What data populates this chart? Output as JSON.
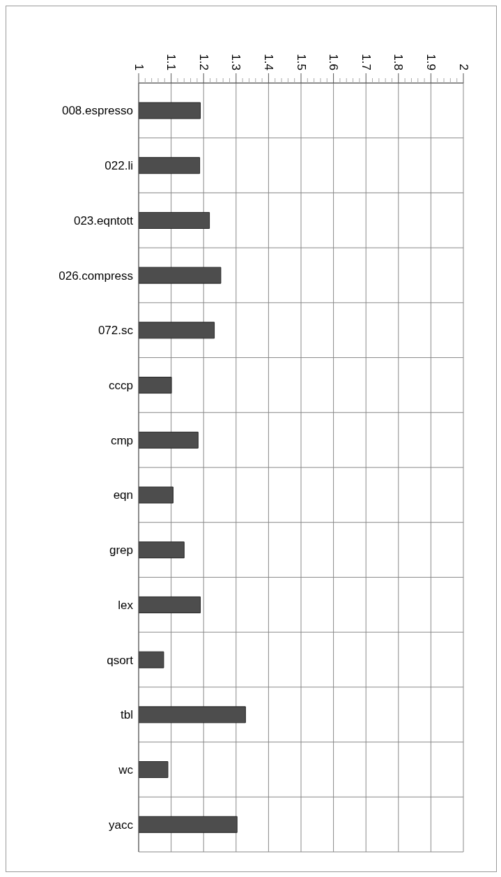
{
  "chart_data": {
    "type": "bar",
    "orientation": "horizontal",
    "categories": [
      "008.espresso",
      "022.li",
      "023.eqntott",
      "026.compress",
      "072.sc",
      "cccp",
      "cmp",
      "eqn",
      "grep",
      "lex",
      "qsort",
      "tbl",
      "wc",
      "yacc"
    ],
    "values": [
      1.19,
      1.188,
      1.218,
      1.253,
      1.233,
      1.101,
      1.183,
      1.106,
      1.14,
      1.19,
      1.077,
      1.329,
      1.09,
      1.303
    ],
    "color": "#4d4d4d",
    "xlim": [
      1,
      2
    ],
    "xticks": [
      1,
      {
        "value": 1.02,
        "label": null
      },
      {
        "value": 1.04,
        "label": null
      },
      {
        "value": 1.06,
        "label": null
      },
      {
        "value": 1.08,
        "label": null
      },
      1.1,
      {
        "value": 1.12,
        "label": null
      },
      {
        "value": 1.14,
        "label": null
      },
      {
        "value": 1.16,
        "label": null
      },
      {
        "value": 1.18,
        "label": null
      },
      1.2,
      {
        "value": 1.22,
        "label": null
      },
      {
        "value": 1.24,
        "label": null
      },
      {
        "value": 1.26,
        "label": null
      },
      {
        "value": 1.28,
        "label": null
      },
      1.3,
      {
        "value": 1.32,
        "label": null
      },
      {
        "value": 1.34,
        "label": null
      },
      {
        "value": 1.36,
        "label": null
      },
      {
        "value": 1.38,
        "label": null
      },
      1.4,
      {
        "value": 1.42,
        "label": null
      },
      {
        "value": 1.44,
        "label": null
      },
      {
        "value": 1.46,
        "label": null
      },
      {
        "value": 1.48,
        "label": null
      },
      1.5,
      {
        "value": 1.52,
        "label": null
      },
      {
        "value": 1.54,
        "label": null
      },
      {
        "value": 1.56,
        "label": null
      },
      {
        "value": 1.58,
        "label": null
      },
      1.6,
      {
        "value": 1.62,
        "label": null
      },
      {
        "value": 1.64,
        "label": null
      },
      {
        "value": 1.66,
        "label": null
      },
      {
        "value": 1.68,
        "label": null
      },
      1.7,
      {
        "value": 1.72,
        "label": null
      },
      {
        "value": 1.74,
        "label": null
      },
      {
        "value": 1.76,
        "label": null
      },
      {
        "value": 1.78,
        "label": null
      },
      1.8,
      {
        "value": 1.82,
        "label": null
      },
      {
        "value": 1.84,
        "label": null
      },
      {
        "value": 1.86,
        "label": null
      },
      {
        "value": 1.88,
        "label": null
      },
      1.9,
      {
        "value": 1.92,
        "label": null
      },
      {
        "value": 1.94,
        "label": null
      },
      {
        "value": 1.96,
        "label": null
      },
      {
        "value": 1.98,
        "label": null
      },
      2
    ],
    "grid": true
  }
}
